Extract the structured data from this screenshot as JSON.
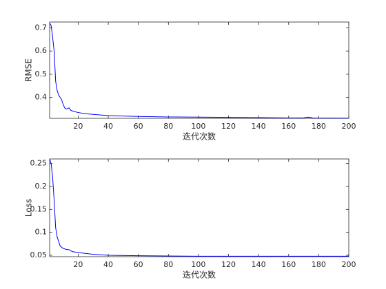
{
  "chart_data": [
    {
      "type": "line",
      "ylabel": "RMSE",
      "xlabel": "迭代次数",
      "xlim": [
        1,
        200
      ],
      "ylim": [
        0.31,
        0.725
      ],
      "xticks": [
        20,
        40,
        60,
        80,
        100,
        120,
        140,
        160,
        180,
        200
      ],
      "yticks": [
        0.4,
        0.5,
        0.6,
        0.7
      ],
      "series": [
        {
          "color": "#0000ff",
          "x": [
            1,
            2,
            3,
            4,
            5,
            6,
            7,
            8,
            9,
            10,
            11,
            12,
            13,
            14,
            15,
            17,
            20,
            25,
            30,
            40,
            50,
            60,
            80,
            100,
            120,
            140,
            160,
            170,
            173,
            176,
            200
          ],
          "values": [
            0.72,
            0.71,
            0.66,
            0.6,
            0.47,
            0.43,
            0.41,
            0.4,
            0.39,
            0.37,
            0.355,
            0.35,
            0.352,
            0.355,
            0.345,
            0.34,
            0.335,
            0.33,
            0.327,
            0.322,
            0.32,
            0.318,
            0.316,
            0.315,
            0.314,
            0.313,
            0.312,
            0.312,
            0.315,
            0.312,
            0.311
          ]
        }
      ]
    },
    {
      "type": "line",
      "ylabel": "Loss",
      "xlabel": "迭代次数",
      "xlim": [
        1,
        200
      ],
      "ylim": [
        0.047,
        0.26
      ],
      "xticks": [
        20,
        40,
        60,
        80,
        100,
        120,
        140,
        160,
        180,
        200
      ],
      "yticks": [
        0.05,
        0.1,
        0.15,
        0.2,
        0.25
      ],
      "series": [
        {
          "color": "#0000ff",
          "x": [
            1,
            2,
            3,
            4,
            5,
            6,
            7,
            8,
            10,
            12,
            14,
            16,
            20,
            25,
            30,
            40,
            60,
            100,
            150,
            200
          ],
          "values": [
            0.26,
            0.25,
            0.22,
            0.17,
            0.11,
            0.09,
            0.08,
            0.07,
            0.065,
            0.063,
            0.062,
            0.058,
            0.056,
            0.054,
            0.052,
            0.05,
            0.049,
            0.048,
            0.048,
            0.048
          ]
        }
      ]
    }
  ]
}
